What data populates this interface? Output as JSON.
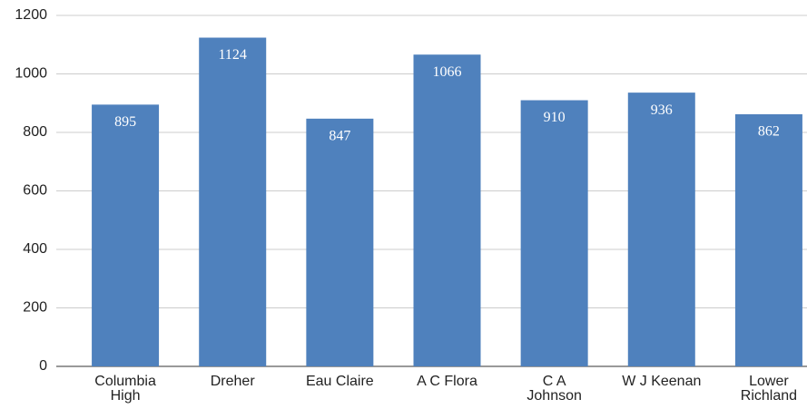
{
  "chart_data": {
    "type": "bar",
    "categories": [
      "Columbia High",
      "Dreher",
      "Eau Claire",
      "A C Flora",
      "C A Johnson",
      "W J Keenan",
      "Lower Richland"
    ],
    "values": [
      895,
      1124,
      847,
      1066,
      910,
      936,
      862
    ],
    "color": "#4f81bd",
    "ylim": [
      0,
      1200
    ],
    "yticks": [
      0,
      200,
      400,
      600,
      800,
      1000,
      1200
    ],
    "grid": true
  }
}
